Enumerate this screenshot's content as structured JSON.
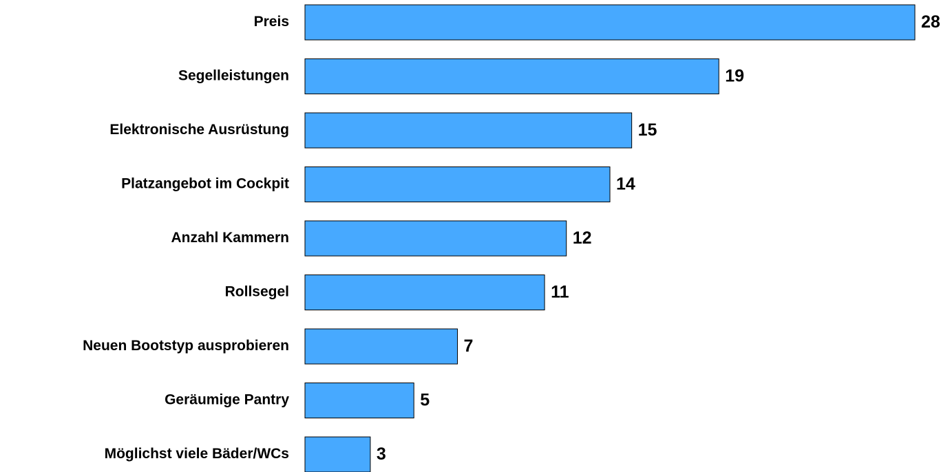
{
  "chart_data": {
    "type": "bar",
    "orientation": "horizontal",
    "categories": [
      "Preis",
      "Segelleistungen",
      "Elektronische Ausrüstung",
      "Platzangebot im Cockpit",
      "Anzahl Kammern",
      "Rollsegel",
      "Neuen Bootstyp ausprobieren",
      "Geräumige Pantry",
      "Möglichst viele Bäder/WCs"
    ],
    "values": [
      28,
      19,
      15,
      14,
      12,
      11,
      7,
      5,
      3
    ],
    "color": "#47a9ff"
  }
}
